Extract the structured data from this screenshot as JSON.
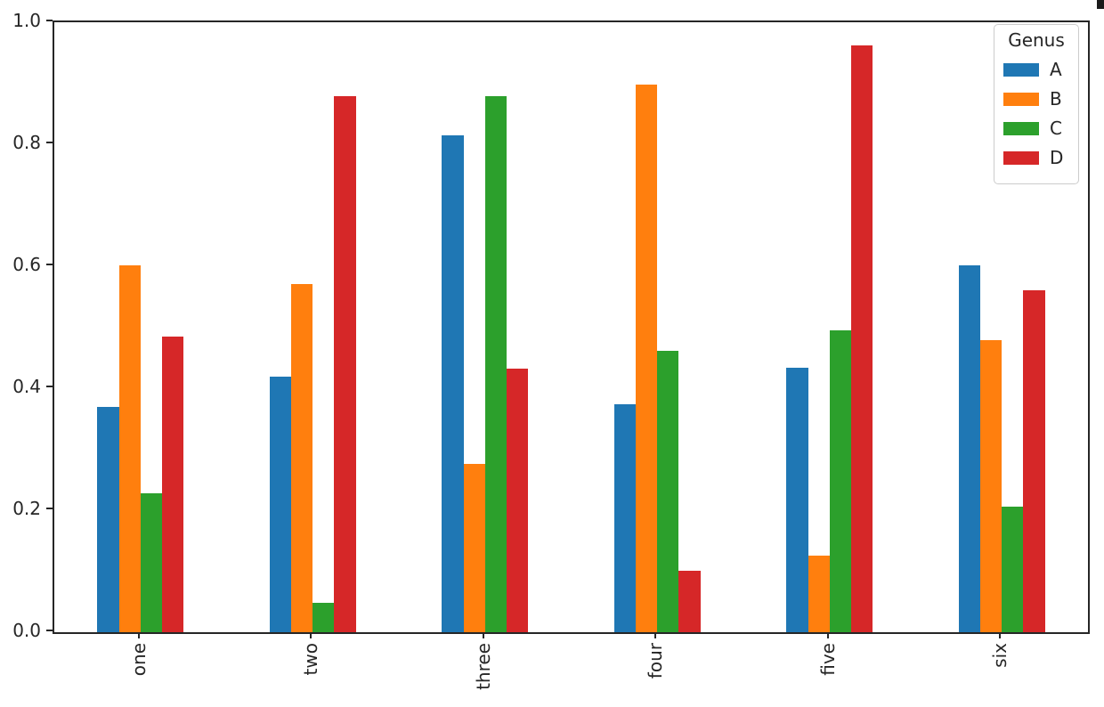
{
  "figure": {
    "background": "#ffffff",
    "spine_color": "#262626",
    "text_color": "#262626"
  },
  "chart_data": {
    "type": "bar",
    "title": "",
    "xlabel": "",
    "ylabel": "",
    "categories": [
      "one",
      "two",
      "three",
      "four",
      "five",
      "six"
    ],
    "series": [
      {
        "name": "A",
        "color": "#1f77b4",
        "values": [
          0.37,
          0.419,
          0.815,
          0.374,
          0.434,
          0.601
        ]
      },
      {
        "name": "B",
        "color": "#ff7f0e",
        "values": [
          0.601,
          0.571,
          0.276,
          0.898,
          0.126,
          0.479
        ]
      },
      {
        "name": "C",
        "color": "#2ca02c",
        "values": [
          0.228,
          0.048,
          0.879,
          0.461,
          0.495,
          0.206
        ]
      },
      {
        "name": "D",
        "color": "#d62728",
        "values": [
          0.485,
          0.879,
          0.432,
          0.101,
          0.962,
          0.561
        ]
      }
    ],
    "legend": {
      "title": "Genus",
      "position": "upper right"
    },
    "y_ticks": [
      "0.0",
      "0.2",
      "0.4",
      "0.6",
      "0.8",
      "1.0"
    ],
    "ylim": [
      0,
      1.0
    ],
    "x_tick_rotation": 90,
    "group_width_fraction": 0.5,
    "grid": false
  }
}
